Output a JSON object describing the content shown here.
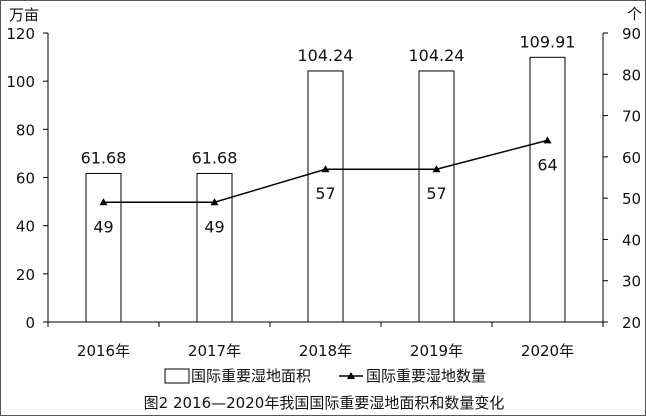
{
  "chart_data": {
    "type": "bar",
    "categories": [
      "2016年",
      "2017年",
      "2018年",
      "2019年",
      "2020年"
    ],
    "series": [
      {
        "name": "国际重要湿地面积",
        "type": "bar",
        "axis": "left",
        "values": [
          61.68,
          61.68,
          104.24,
          104.24,
          109.91
        ]
      },
      {
        "name": "国际重要湿地数量",
        "type": "line",
        "axis": "right",
        "marker": "triangle",
        "values": [
          49,
          49,
          57,
          57,
          64
        ]
      }
    ],
    "left_axis": {
      "unit": "万亩",
      "range": [
        0,
        120
      ],
      "ticks": [
        "0",
        "20",
        "40",
        "60",
        "80",
        "100",
        "120"
      ]
    },
    "right_axis": {
      "unit": "个",
      "range": [
        20,
        90
      ],
      "ticks": [
        "20",
        "30",
        "40",
        "50",
        "60",
        "70",
        "80",
        "90"
      ]
    },
    "bar_labels": [
      "61.68",
      "61.68",
      "104.24",
      "104.24",
      "109.91"
    ],
    "line_labels": [
      "49",
      "49",
      "57",
      "57",
      "64"
    ],
    "legend_position": "bottom",
    "grid": false,
    "caption": "图2 2016—2020年我国国际重要湿地面积和数量变化",
    "colors": {
      "bar_fill": "#ffffff",
      "bar_stroke": "#000000",
      "line": "#000000",
      "axis": "#000000"
    }
  }
}
